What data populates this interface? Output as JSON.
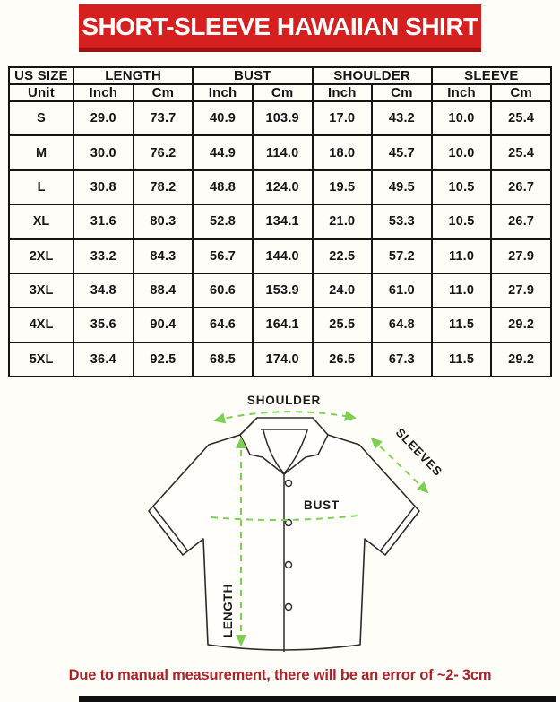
{
  "banner": {
    "title": "SHORT-SLEEVE HAWAIIAN SHIRT"
  },
  "chart_data": {
    "type": "table",
    "title": "SHORT-SLEEVE HAWAIIAN SHIRT",
    "column_groups": [
      {
        "label": "US SIZE",
        "span": 1
      },
      {
        "label": "LENGTH",
        "span": 2
      },
      {
        "label": "BUST",
        "span": 2
      },
      {
        "label": "SHOULDER",
        "span": 2
      },
      {
        "label": "SLEEVE",
        "span": 2
      }
    ],
    "sub_headers": [
      "Unit",
      "Inch",
      "Cm",
      "Inch",
      "Cm",
      "Inch",
      "Cm",
      "Inch",
      "Cm"
    ],
    "rows": [
      {
        "size": "S",
        "values": [
          "29.0",
          "73.7",
          "40.9",
          "103.9",
          "17.0",
          "43.2",
          "10.0",
          "25.4"
        ]
      },
      {
        "size": "M",
        "values": [
          "30.0",
          "76.2",
          "44.9",
          "114.0",
          "18.0",
          "45.7",
          "10.0",
          "25.4"
        ]
      },
      {
        "size": "L",
        "values": [
          "30.8",
          "78.2",
          "48.8",
          "124.0",
          "19.5",
          "49.5",
          "10.5",
          "26.7"
        ]
      },
      {
        "size": "XL",
        "values": [
          "31.6",
          "80.3",
          "52.8",
          "134.1",
          "21.0",
          "53.3",
          "10.5",
          "26.7"
        ]
      },
      {
        "size": "2XL",
        "values": [
          "33.2",
          "84.3",
          "56.7",
          "144.0",
          "22.5",
          "57.2",
          "11.0",
          "27.9"
        ]
      },
      {
        "size": "3XL",
        "values": [
          "34.8",
          "88.4",
          "60.6",
          "153.9",
          "24.0",
          "61.0",
          "11.0",
          "27.9"
        ]
      },
      {
        "size": "4XL",
        "values": [
          "35.6",
          "90.4",
          "64.6",
          "164.1",
          "25.5",
          "64.8",
          "11.5",
          "29.2"
        ]
      },
      {
        "size": "5XL",
        "values": [
          "36.4",
          "92.5",
          "68.5",
          "174.0",
          "26.5",
          "67.3",
          "11.5",
          "29.2"
        ]
      }
    ]
  },
  "diagram": {
    "labels": {
      "shoulder": "SHOULDER",
      "sleeves": "SLEEVES",
      "bust": "BUST",
      "length": "LENGTH"
    },
    "arrow_color": "#7dd04f"
  },
  "note": {
    "text": "Due to manual measurement, there will be an error of ~2- 3cm"
  },
  "colors": {
    "banner_bg": "#d6201f",
    "banner_shadow": "#9e1113",
    "note_text": "#ab222b",
    "table_border": "#151515",
    "background": "#fffdf7"
  }
}
